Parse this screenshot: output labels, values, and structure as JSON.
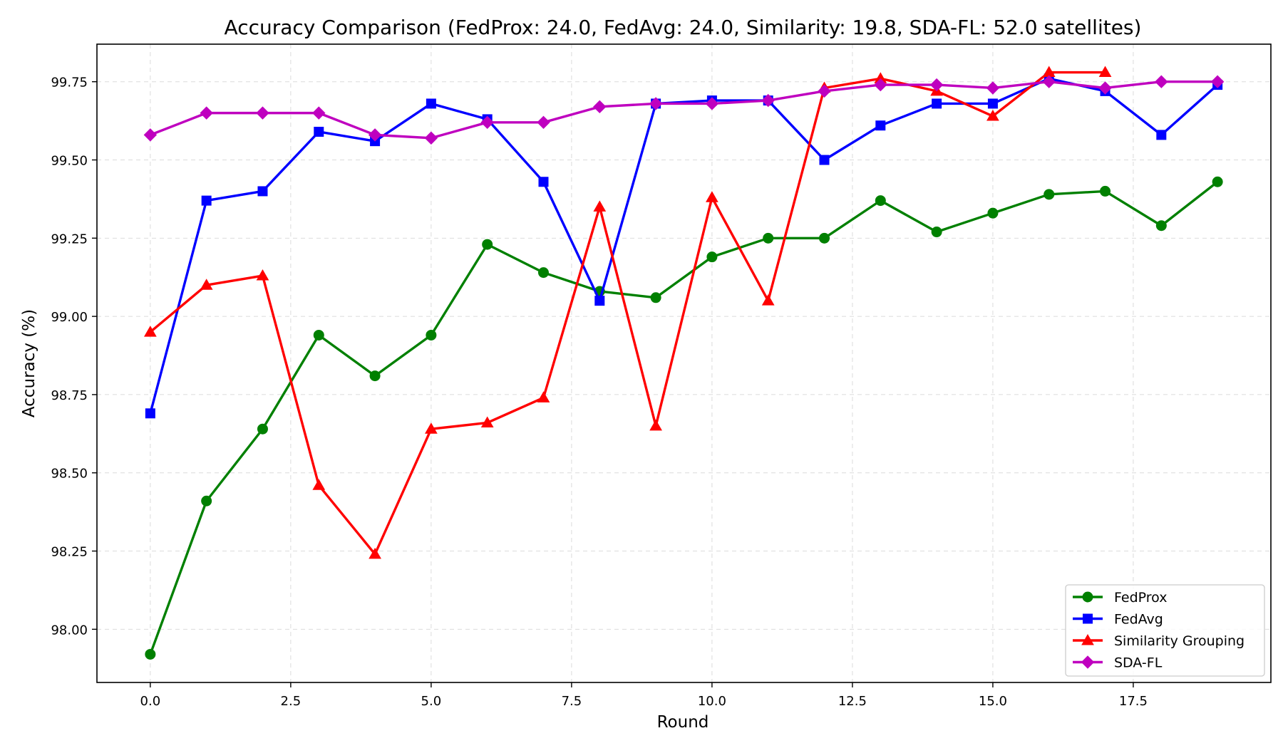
{
  "chart_data": {
    "type": "line",
    "title": "Accuracy Comparison (FedProx: 24.0, FedAvg: 24.0, Similarity: 19.8, SDA-FL: 52.0 satellites)",
    "xlabel": "Round",
    "ylabel": "Accuracy (%)",
    "xlim": [
      -0.95,
      19.95
    ],
    "ylim": [
      97.83,
      99.87
    ],
    "xticks": [
      0.0,
      2.5,
      5.0,
      7.5,
      10.0,
      12.5,
      15.0,
      17.5
    ],
    "xtick_labels": [
      "0.0",
      "2.5",
      "5.0",
      "7.5",
      "10.0",
      "12.5",
      "15.0",
      "17.5"
    ],
    "yticks": [
      98.0,
      98.25,
      98.5,
      98.75,
      99.0,
      99.25,
      99.5,
      99.75
    ],
    "ytick_labels": [
      "98.00",
      "98.25",
      "98.50",
      "98.75",
      "99.00",
      "99.25",
      "99.50",
      "99.75"
    ],
    "grid": true,
    "legend_position": "bottom-right",
    "series": [
      {
        "name": "FedProx",
        "color": "#008000",
        "marker": "circle",
        "x": [
          0,
          1,
          2,
          3,
          4,
          5,
          6,
          7,
          8,
          9,
          10,
          11,
          12,
          13,
          14,
          15,
          16,
          17,
          18,
          19
        ],
        "values": [
          97.92,
          98.41,
          98.64,
          98.94,
          98.81,
          98.94,
          99.23,
          99.14,
          99.08,
          99.06,
          99.19,
          99.25,
          99.25,
          99.37,
          99.27,
          99.33,
          99.39,
          99.4,
          99.29,
          99.43
        ]
      },
      {
        "name": "FedAvg",
        "color": "#0000ff",
        "marker": "square",
        "x": [
          0,
          1,
          2,
          3,
          4,
          5,
          6,
          7,
          8,
          9,
          10,
          11,
          12,
          13,
          14,
          15,
          16,
          17,
          18,
          19
        ],
        "values": [
          98.69,
          99.37,
          99.4,
          99.59,
          99.56,
          99.68,
          99.63,
          99.43,
          99.05,
          99.68,
          99.69,
          99.69,
          99.5,
          99.61,
          99.68,
          99.68,
          99.76,
          99.72,
          99.58,
          99.74
        ]
      },
      {
        "name": "Similarity Grouping",
        "color": "#ff0000",
        "marker": "triangle",
        "x": [
          0,
          1,
          2,
          3,
          4,
          5,
          6,
          7,
          8,
          9,
          10,
          11,
          12,
          13,
          14,
          15,
          16,
          17
        ],
        "values": [
          98.95,
          99.1,
          99.13,
          98.46,
          98.24,
          98.64,
          98.66,
          98.74,
          99.35,
          98.65,
          99.38,
          99.05,
          99.73,
          99.76,
          99.72,
          99.64,
          99.78,
          99.78
        ]
      },
      {
        "name": "SDA-FL",
        "color": "#bf00bf",
        "marker": "diamond",
        "x": [
          0,
          1,
          2,
          3,
          4,
          5,
          6,
          7,
          8,
          9,
          10,
          11,
          12,
          13,
          14,
          15,
          16,
          17,
          18,
          19
        ],
        "values": [
          99.58,
          99.65,
          99.65,
          99.65,
          99.58,
          99.57,
          99.62,
          99.62,
          99.67,
          99.68,
          99.68,
          99.69,
          99.72,
          99.74,
          99.74,
          99.73,
          99.75,
          99.73,
          99.75,
          99.75
        ]
      }
    ]
  }
}
